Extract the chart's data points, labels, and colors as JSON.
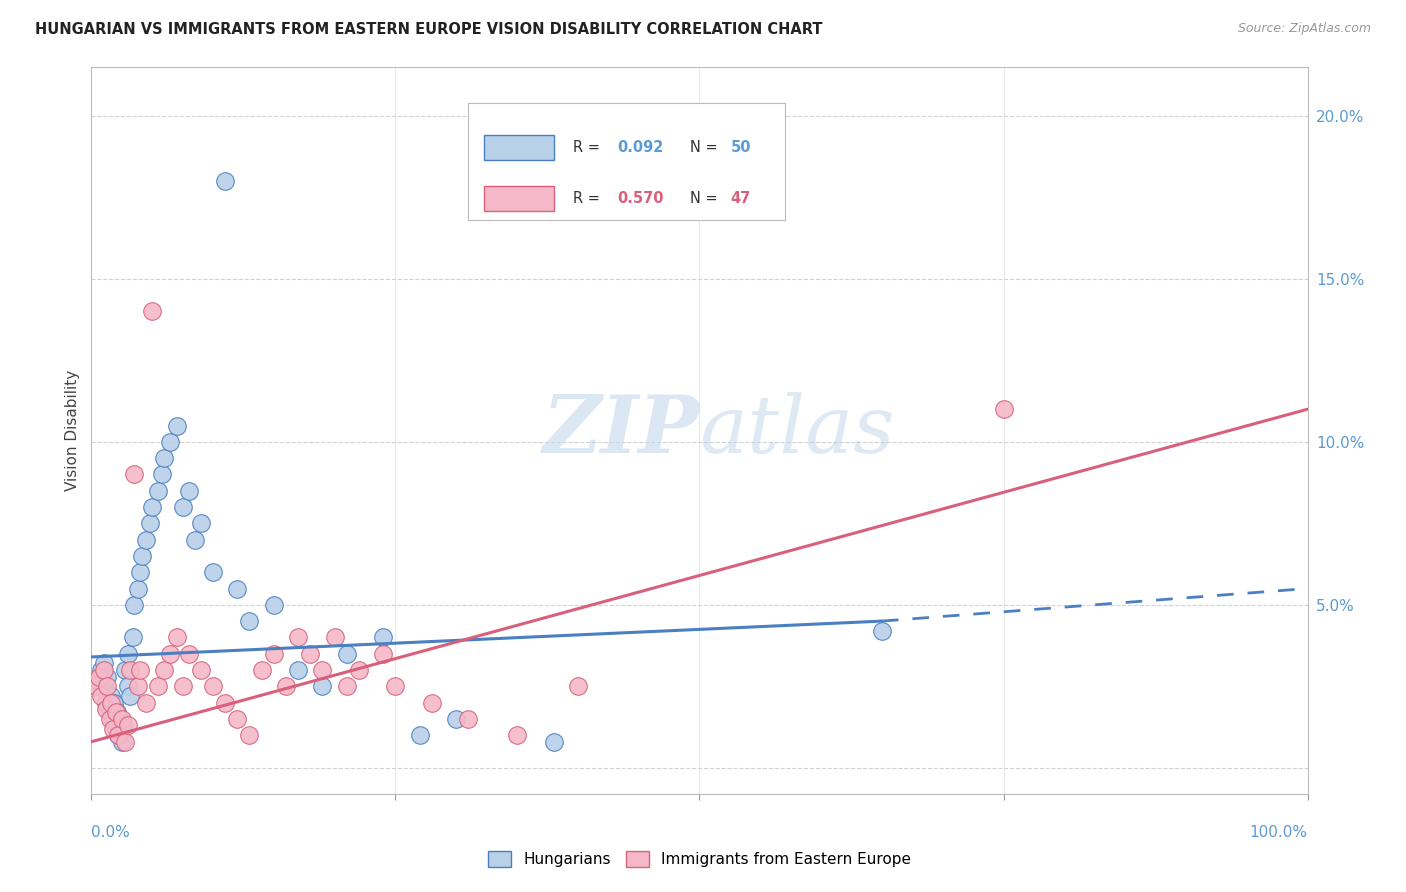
{
  "title": "HUNGARIAN VS IMMIGRANTS FROM EASTERN EUROPE VISION DISABILITY CORRELATION CHART",
  "source": "Source: ZipAtlas.com",
  "ylabel": "Vision Disability",
  "yticks": [
    0.0,
    0.05,
    0.1,
    0.15,
    0.2
  ],
  "ytick_labels": [
    "",
    "5.0%",
    "10.0%",
    "15.0%",
    "20.0%"
  ],
  "xlim": [
    0.0,
    1.0
  ],
  "ylim": [
    -0.008,
    0.215
  ],
  "r_hungarian": "0.092",
  "n_hungarian": "50",
  "r_immigrant": "0.570",
  "n_immigrant": "47",
  "color_hungarian": "#b8d0e8",
  "color_immigrant": "#f5b8c8",
  "color_hungarian_line": "#4a7fc1",
  "color_immigrant_line": "#d9607a",
  "legend_label_hungarian": "Hungarians",
  "legend_label_immigrant": "Immigrants from Eastern Europe",
  "watermark_zip": "ZIP",
  "watermark_atlas": "atlas",
  "background_color": "#ffffff",
  "hun_line_start_x": 0.0,
  "hun_line_start_y": 0.034,
  "hun_line_solid_end_x": 0.65,
  "hun_line_solid_end_y": 0.045,
  "hun_line_dash_end_x": 1.0,
  "hun_line_dash_end_y": 0.055,
  "imm_line_start_x": 0.0,
  "imm_line_start_y": 0.008,
  "imm_line_end_x": 1.0,
  "imm_line_end_y": 0.11,
  "hungarian_x": [
    0.005,
    0.008,
    0.01,
    0.01,
    0.012,
    0.013,
    0.015,
    0.016,
    0.018,
    0.019,
    0.02,
    0.021,
    0.022,
    0.023,
    0.025,
    0.026,
    0.028,
    0.03,
    0.03,
    0.032,
    0.034,
    0.035,
    0.038,
    0.04,
    0.042,
    0.045,
    0.048,
    0.05,
    0.055,
    0.058,
    0.06,
    0.065,
    0.07,
    0.075,
    0.08,
    0.085,
    0.09,
    0.1,
    0.11,
    0.12,
    0.13,
    0.15,
    0.17,
    0.19,
    0.21,
    0.24,
    0.27,
    0.3,
    0.38,
    0.65
  ],
  "hungarian_y": [
    0.027,
    0.03,
    0.025,
    0.032,
    0.02,
    0.028,
    0.018,
    0.022,
    0.015,
    0.02,
    0.012,
    0.017,
    0.01,
    0.015,
    0.008,
    0.013,
    0.03,
    0.025,
    0.035,
    0.022,
    0.04,
    0.05,
    0.055,
    0.06,
    0.065,
    0.07,
    0.075,
    0.08,
    0.085,
    0.09,
    0.095,
    0.1,
    0.105,
    0.08,
    0.085,
    0.07,
    0.075,
    0.06,
    0.18,
    0.055,
    0.045,
    0.05,
    0.03,
    0.025,
    0.035,
    0.04,
    0.01,
    0.015,
    0.008,
    0.042
  ],
  "immigrant_x": [
    0.004,
    0.006,
    0.008,
    0.01,
    0.012,
    0.013,
    0.015,
    0.016,
    0.018,
    0.02,
    0.022,
    0.025,
    0.028,
    0.03,
    0.032,
    0.035,
    0.038,
    0.04,
    0.045,
    0.05,
    0.055,
    0.06,
    0.065,
    0.07,
    0.075,
    0.08,
    0.09,
    0.1,
    0.11,
    0.12,
    0.13,
    0.15,
    0.17,
    0.19,
    0.21,
    0.24,
    0.14,
    0.16,
    0.18,
    0.2,
    0.22,
    0.25,
    0.28,
    0.31,
    0.35,
    0.4,
    0.75
  ],
  "immigrant_y": [
    0.025,
    0.028,
    0.022,
    0.03,
    0.018,
    0.025,
    0.015,
    0.02,
    0.012,
    0.017,
    0.01,
    0.015,
    0.008,
    0.013,
    0.03,
    0.09,
    0.025,
    0.03,
    0.02,
    0.14,
    0.025,
    0.03,
    0.035,
    0.04,
    0.025,
    0.035,
    0.03,
    0.025,
    0.02,
    0.015,
    0.01,
    0.035,
    0.04,
    0.03,
    0.025,
    0.035,
    0.03,
    0.025,
    0.035,
    0.04,
    0.03,
    0.025,
    0.02,
    0.015,
    0.01,
    0.025,
    0.11
  ]
}
